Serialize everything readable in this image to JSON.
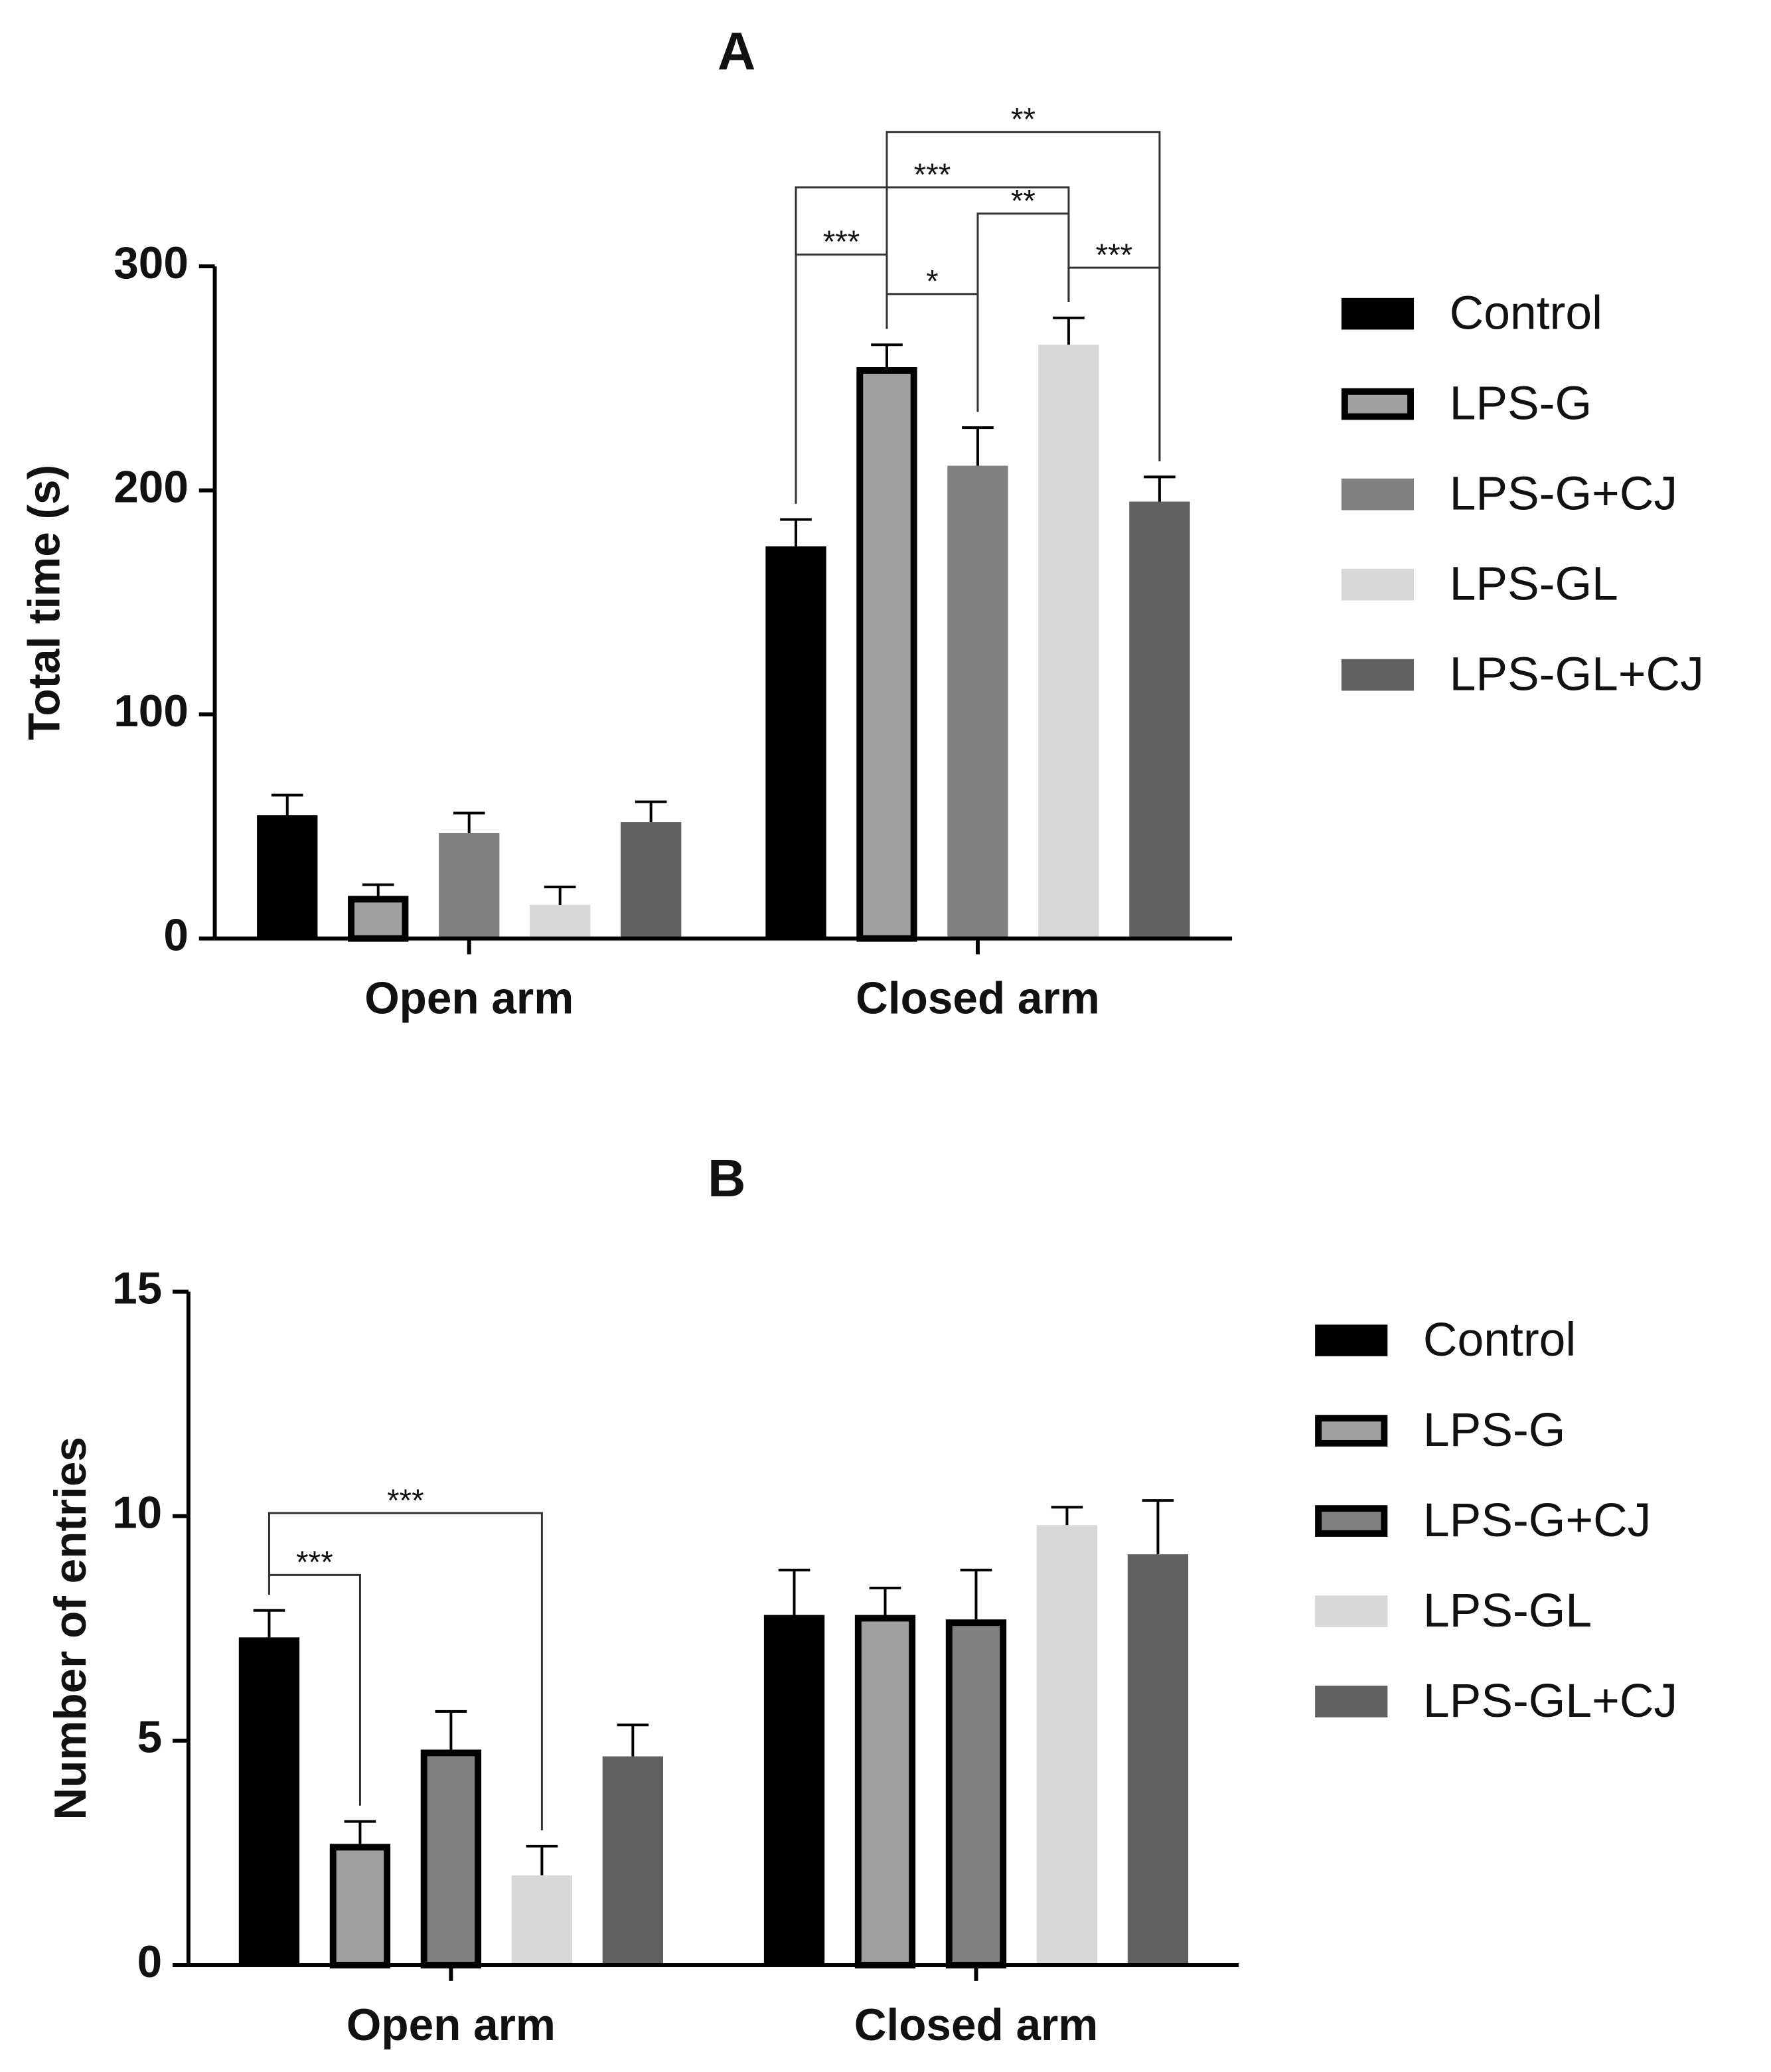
{
  "chart_data": [
    {
      "type": "bar",
      "title": "A",
      "ylabel": "Total time (s)",
      "categories": [
        "Open arm",
        "Closed arm"
      ],
      "series": [
        {
          "name": "Control",
          "color": "#000000",
          "outline": false,
          "values": [
            55,
            175
          ],
          "errors": [
            9,
            12
          ]
        },
        {
          "name": "LPS-G",
          "color": "#a0a0a0",
          "outline": true,
          "values": [
            19,
            255
          ],
          "errors": [
            5,
            10
          ]
        },
        {
          "name": "LPS-G+CJ",
          "color": "#808080",
          "outline": false,
          "values": [
            47,
            211
          ],
          "errors": [
            9,
            17
          ]
        },
        {
          "name": "LPS-GL",
          "color": "#d8d8d8",
          "outline": false,
          "values": [
            15,
            265
          ],
          "errors": [
            8,
            12
          ]
        },
        {
          "name": "LPS-GL+CJ",
          "color": "#606060",
          "outline": false,
          "values": [
            52,
            195
          ],
          "errors": [
            9,
            11
          ]
        }
      ],
      "ylim": [
        0,
        300
      ],
      "yticks": [
        0,
        100,
        200,
        300
      ],
      "annotations": [
        {
          "label": "***",
          "category": "Closed arm",
          "from": "Control",
          "to": "LPS-G"
        },
        {
          "label": "*",
          "category": "Closed arm",
          "from": "LPS-G",
          "to": "LPS-G+CJ"
        },
        {
          "label": "**",
          "category": "Closed arm",
          "from": "LPS-G+CJ",
          "to": "LPS-GL"
        },
        {
          "label": "***",
          "category": "Closed arm",
          "from": "LPS-GL",
          "to": "LPS-GL+CJ"
        },
        {
          "label": "***",
          "category": "Closed arm",
          "from": "Control",
          "to": "LPS-GL"
        },
        {
          "label": "**",
          "category": "Closed arm",
          "from": "LPS-G",
          "to": "LPS-GL+CJ"
        }
      ]
    },
    {
      "type": "bar",
      "title": "B",
      "ylabel": "Number of entries",
      "categories": [
        "Open arm",
        "Closed arm"
      ],
      "series": [
        {
          "name": "Control",
          "color": "#000000",
          "outline": false,
          "values": [
            7.3,
            7.8
          ],
          "errors": [
            0.6,
            1.0
          ]
        },
        {
          "name": "LPS-G",
          "color": "#a0a0a0",
          "outline": true,
          "values": [
            2.7,
            7.8
          ],
          "errors": [
            0.5,
            0.6
          ]
        },
        {
          "name": "LPS-G+CJ",
          "color": "#808080",
          "outline": true,
          "values": [
            4.8,
            7.7
          ],
          "errors": [
            0.85,
            1.1
          ]
        },
        {
          "name": "LPS-GL",
          "color": "#d8d8d8",
          "outline": false,
          "values": [
            2.0,
            9.8
          ],
          "errors": [
            0.65,
            0.4
          ]
        },
        {
          "name": "LPS-GL+CJ",
          "color": "#606060",
          "outline": false,
          "values": [
            4.65,
            9.15
          ],
          "errors": [
            0.7,
            1.2
          ]
        }
      ],
      "ylim": [
        0,
        15
      ],
      "yticks": [
        0,
        5,
        10,
        15
      ],
      "annotations": [
        {
          "label": "***",
          "category": "Open arm",
          "from": "Control",
          "to": "LPS-G"
        },
        {
          "label": "***",
          "category": "Open arm",
          "from": "Control",
          "to": "LPS-GL"
        }
      ]
    }
  ]
}
